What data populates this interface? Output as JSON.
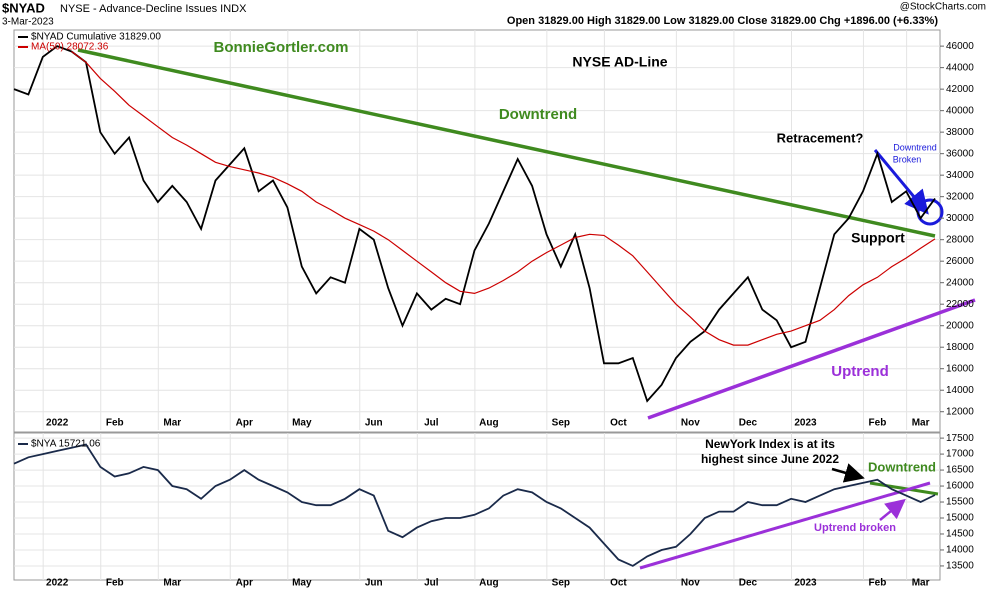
{
  "header": {
    "symbol": "$NYAD",
    "name": "NYSE - Advance-Decline Issues INDX",
    "date": "3-Mar-2023",
    "source": "@StockCharts.com",
    "quote": "Open 31829.00 High 31829.00 Low 31829.00 Close 31829.00 Chg +1896.00 (+6.33%)"
  },
  "chart_data": [
    {
      "type": "line",
      "categories": [
        null,
        null,
        null,
        "2022",
        null,
        null,
        null,
        "Feb",
        null,
        null,
        null,
        "Mar",
        null,
        null,
        null,
        null,
        "Apr",
        null,
        null,
        null,
        "May",
        null,
        null,
        null,
        null,
        "Jun",
        null,
        null,
        null,
        "Jul",
        null,
        null,
        null,
        "Aug",
        null,
        null,
        null,
        null,
        "Sep",
        null,
        null,
        null,
        "Oct",
        null,
        null,
        null,
        null,
        "Nov",
        null,
        null,
        null,
        "Dec",
        null,
        null,
        null,
        "2023",
        null,
        null,
        null,
        null,
        "Feb",
        null,
        null,
        "Mar",
        null
      ],
      "series": [
        {
          "name": "$NYAD Cumulative 31829.00",
          "color": "#000000",
          "values": [
            42000,
            41500,
            45000,
            46000,
            45500,
            44500,
            38000,
            36000,
            37500,
            33500,
            31500,
            33000,
            31500,
            29000,
            33500,
            35000,
            36500,
            32500,
            33500,
            31000,
            25500,
            23000,
            24500,
            24000,
            29000,
            28000,
            23500,
            20000,
            23000,
            21500,
            22500,
            22000,
            27000,
            29500,
            32500,
            35500,
            33000,
            28500,
            25500,
            28500,
            23500,
            16500,
            16500,
            17000,
            13000,
            14500,
            17000,
            18500,
            19500,
            21500,
            23000,
            24500,
            21500,
            20500,
            18000,
            18500,
            23500,
            28500,
            30000,
            32500,
            36000,
            31500,
            32500,
            30000,
            31829
          ]
        },
        {
          "name": "MA(50) 28072.36",
          "color": "#cc0000",
          "values": [
            null,
            null,
            null,
            null,
            45500,
            44500,
            43000,
            41800,
            40500,
            39500,
            38500,
            37500,
            36800,
            36000,
            35200,
            34800,
            34500,
            34200,
            33800,
            33200,
            32500,
            31500,
            30800,
            30000,
            29400,
            28800,
            28000,
            27000,
            26000,
            25000,
            24000,
            23200,
            23000,
            23500,
            24200,
            25000,
            26000,
            26800,
            27500,
            28200,
            28500,
            28400,
            27500,
            26500,
            25000,
            23500,
            22000,
            20800,
            19500,
            18700,
            18200,
            18200,
            18700,
            19200,
            19500,
            20000,
            20500,
            21500,
            22800,
            23800,
            24500,
            25500,
            26300,
            27200,
            28072
          ]
        }
      ],
      "ylim": [
        10300,
        47500
      ],
      "yticks": [
        12000,
        14000,
        16000,
        18000,
        20000,
        22000,
        24000,
        26000,
        28000,
        30000,
        32000,
        34000,
        36000,
        38000,
        40000,
        42000,
        44000,
        46000
      ],
      "grid": true,
      "annotations": {
        "site": "BonnieGortler.com",
        "title": "NYSE AD-Line",
        "downtrend": "Downtrend",
        "retracement": "Retracement?",
        "broken_1": "Downtrend",
        "broken_2": "Broken",
        "support": "Support",
        "uptrend": "Uptrend"
      }
    },
    {
      "type": "line",
      "categories": [
        null,
        null,
        null,
        "2022",
        null,
        null,
        null,
        "Feb",
        null,
        null,
        null,
        "Mar",
        null,
        null,
        null,
        null,
        "Apr",
        null,
        null,
        null,
        "May",
        null,
        null,
        null,
        null,
        "Jun",
        null,
        null,
        null,
        "Jul",
        null,
        null,
        null,
        "Aug",
        null,
        null,
        null,
        null,
        "Sep",
        null,
        null,
        null,
        "Oct",
        null,
        null,
        null,
        null,
        "Nov",
        null,
        null,
        null,
        "Dec",
        null,
        null,
        null,
        "2023",
        null,
        null,
        null,
        null,
        "Feb",
        null,
        null,
        "Mar",
        null
      ],
      "series": [
        {
          "name": "$NYA 15721.06",
          "color": "#1a2a4a",
          "values": [
            16700,
            16900,
            17000,
            17100,
            17200,
            17300,
            16600,
            16300,
            16400,
            16600,
            16500,
            16000,
            15900,
            15600,
            16000,
            16200,
            16500,
            16200,
            16000,
            15800,
            15500,
            15400,
            15400,
            15600,
            15900,
            15700,
            14600,
            14400,
            14700,
            14900,
            15000,
            15000,
            15100,
            15300,
            15700,
            15900,
            15800,
            15500,
            15300,
            15000,
            14700,
            14200,
            13700,
            13500,
            13800,
            14000,
            14100,
            14500,
            15000,
            15200,
            15200,
            15500,
            15400,
            15400,
            15600,
            15500,
            15700,
            15900,
            16000,
            16100,
            16200,
            15900,
            15700,
            15500,
            15721
          ]
        }
      ],
      "ylim": [
        13060,
        17660
      ],
      "yticks": [
        13500,
        14000,
        14500,
        15000,
        15500,
        16000,
        16500,
        17000,
        17500
      ],
      "grid": true,
      "annotations": {
        "note_1": "NewYork Index is at its",
        "note_2": "highest since June 2022",
        "downtrend": "Downtrend",
        "uptrend_broken": "Uptrend broken"
      }
    }
  ]
}
